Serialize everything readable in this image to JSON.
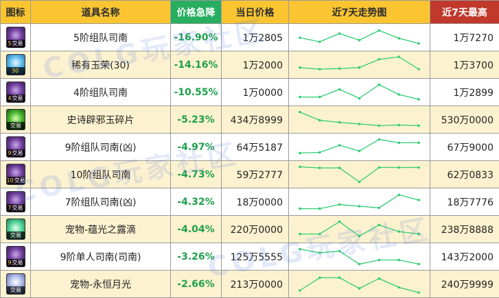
{
  "headers": {
    "icon": "图标",
    "name": "道具名称",
    "drop": "价格急降",
    "price": "当日价格",
    "trend": "近7天走势图",
    "max": "近7天最高"
  },
  "colors": {
    "header_bg": "#fbc531",
    "drop_header_bg": "#27ae60",
    "max_header_bg": "#c0392b",
    "drop_text": "#1e9f4c",
    "trend_line": "#2ecc71",
    "row_alt_bg": "#fdf2d0"
  },
  "watermarks": [
    "COLG玩家社区",
    "COLG玩家社区",
    "COLG玩家社区"
  ],
  "rows": [
    {
      "icon": "purple-gear-icon",
      "icon_color": "purple",
      "tag_num": "5",
      "tag_text": "交易",
      "name": "5阶组队司南",
      "drop": "-16.90%",
      "price": "1万2805",
      "max": "1万7270",
      "trend": [
        50,
        70,
        30,
        62,
        15,
        53,
        78
      ]
    },
    {
      "icon": "blue-orb-icon",
      "icon_color": "blue",
      "tag_num": "30",
      "tag_text": "",
      "name": "稀有玉荣(30)",
      "drop": "-14.16%",
      "price": "1万2000",
      "max": "1万3700",
      "trend": [
        62,
        70,
        67,
        62,
        22,
        10,
        70
      ]
    },
    {
      "icon": "purple-gear-icon",
      "icon_color": "purple",
      "tag_num": "4",
      "tag_text": "交易",
      "name": "4阶组队司南",
      "drop": "-10.55%",
      "price": "1万0000",
      "max": "1万2899",
      "trend": [
        72,
        72,
        35,
        78,
        12,
        60,
        83
      ]
    },
    {
      "icon": "green-gem-icon",
      "icon_color": "green",
      "tag_num": "",
      "tag_text": "交易",
      "name": "史诗辟邪玉碎片",
      "drop": "-5.23%",
      "price": "434万8999",
      "max": "530万0000",
      "trend": [
        12,
        52,
        62,
        70,
        78,
        75,
        78
      ]
    },
    {
      "icon": "purple-gear-icon",
      "icon_color": "purple",
      "tag_num": "9",
      "tag_text": "交易",
      "name": "9阶组队司南(凶)",
      "drop": "-4.97%",
      "price": "64万5187",
      "max": "67万9000",
      "trend": [
        78,
        75,
        40,
        68,
        12,
        28,
        28
      ]
    },
    {
      "icon": "purple-gear-icon",
      "icon_color": "purple",
      "tag_num": "10",
      "tag_text": "交易",
      "name": "10阶组队司南",
      "drop": "-4.73%",
      "price": "59万2777",
      "max": "62万0833",
      "trend": [
        12,
        17,
        17,
        85,
        15,
        15,
        15
      ]
    },
    {
      "icon": "purple-gear-icon",
      "icon_color": "purple",
      "tag_num": "7",
      "tag_text": "交易",
      "name": "7阶组队司南(凶)",
      "drop": "-4.32%",
      "price": "18万0000",
      "max": "18万7776",
      "trend": [
        82,
        82,
        62,
        70,
        78,
        15,
        40
      ]
    },
    {
      "icon": "teal-drop-icon",
      "icon_color": "teal",
      "tag_num": "",
      "tag_text": "交易",
      "name": "宠物-蕴光之露滴",
      "drop": "-4.04%",
      "price": "220万0000",
      "max": "238万8888",
      "trend": [
        72,
        72,
        12,
        82,
        28,
        60,
        72
      ]
    },
    {
      "icon": "purple-gear-icon",
      "icon_color": "purple",
      "tag_num": "9",
      "tag_text": "交易",
      "name": "9阶单人司南(司南)",
      "drop": "-3.26%",
      "price": "125万5555",
      "max": "143万2000",
      "trend": [
        12,
        30,
        22,
        85,
        65,
        65,
        85
      ]
    },
    {
      "icon": "moon-orb-icon",
      "icon_color": "moon",
      "tag_num": "",
      "tag_text": "交易",
      "name": "宠物-永恒月光",
      "drop": "-2.66%",
      "price": "213万0000",
      "max": "240万9999",
      "trend": [
        80,
        18,
        18,
        70,
        22,
        65,
        90
      ]
    }
  ]
}
